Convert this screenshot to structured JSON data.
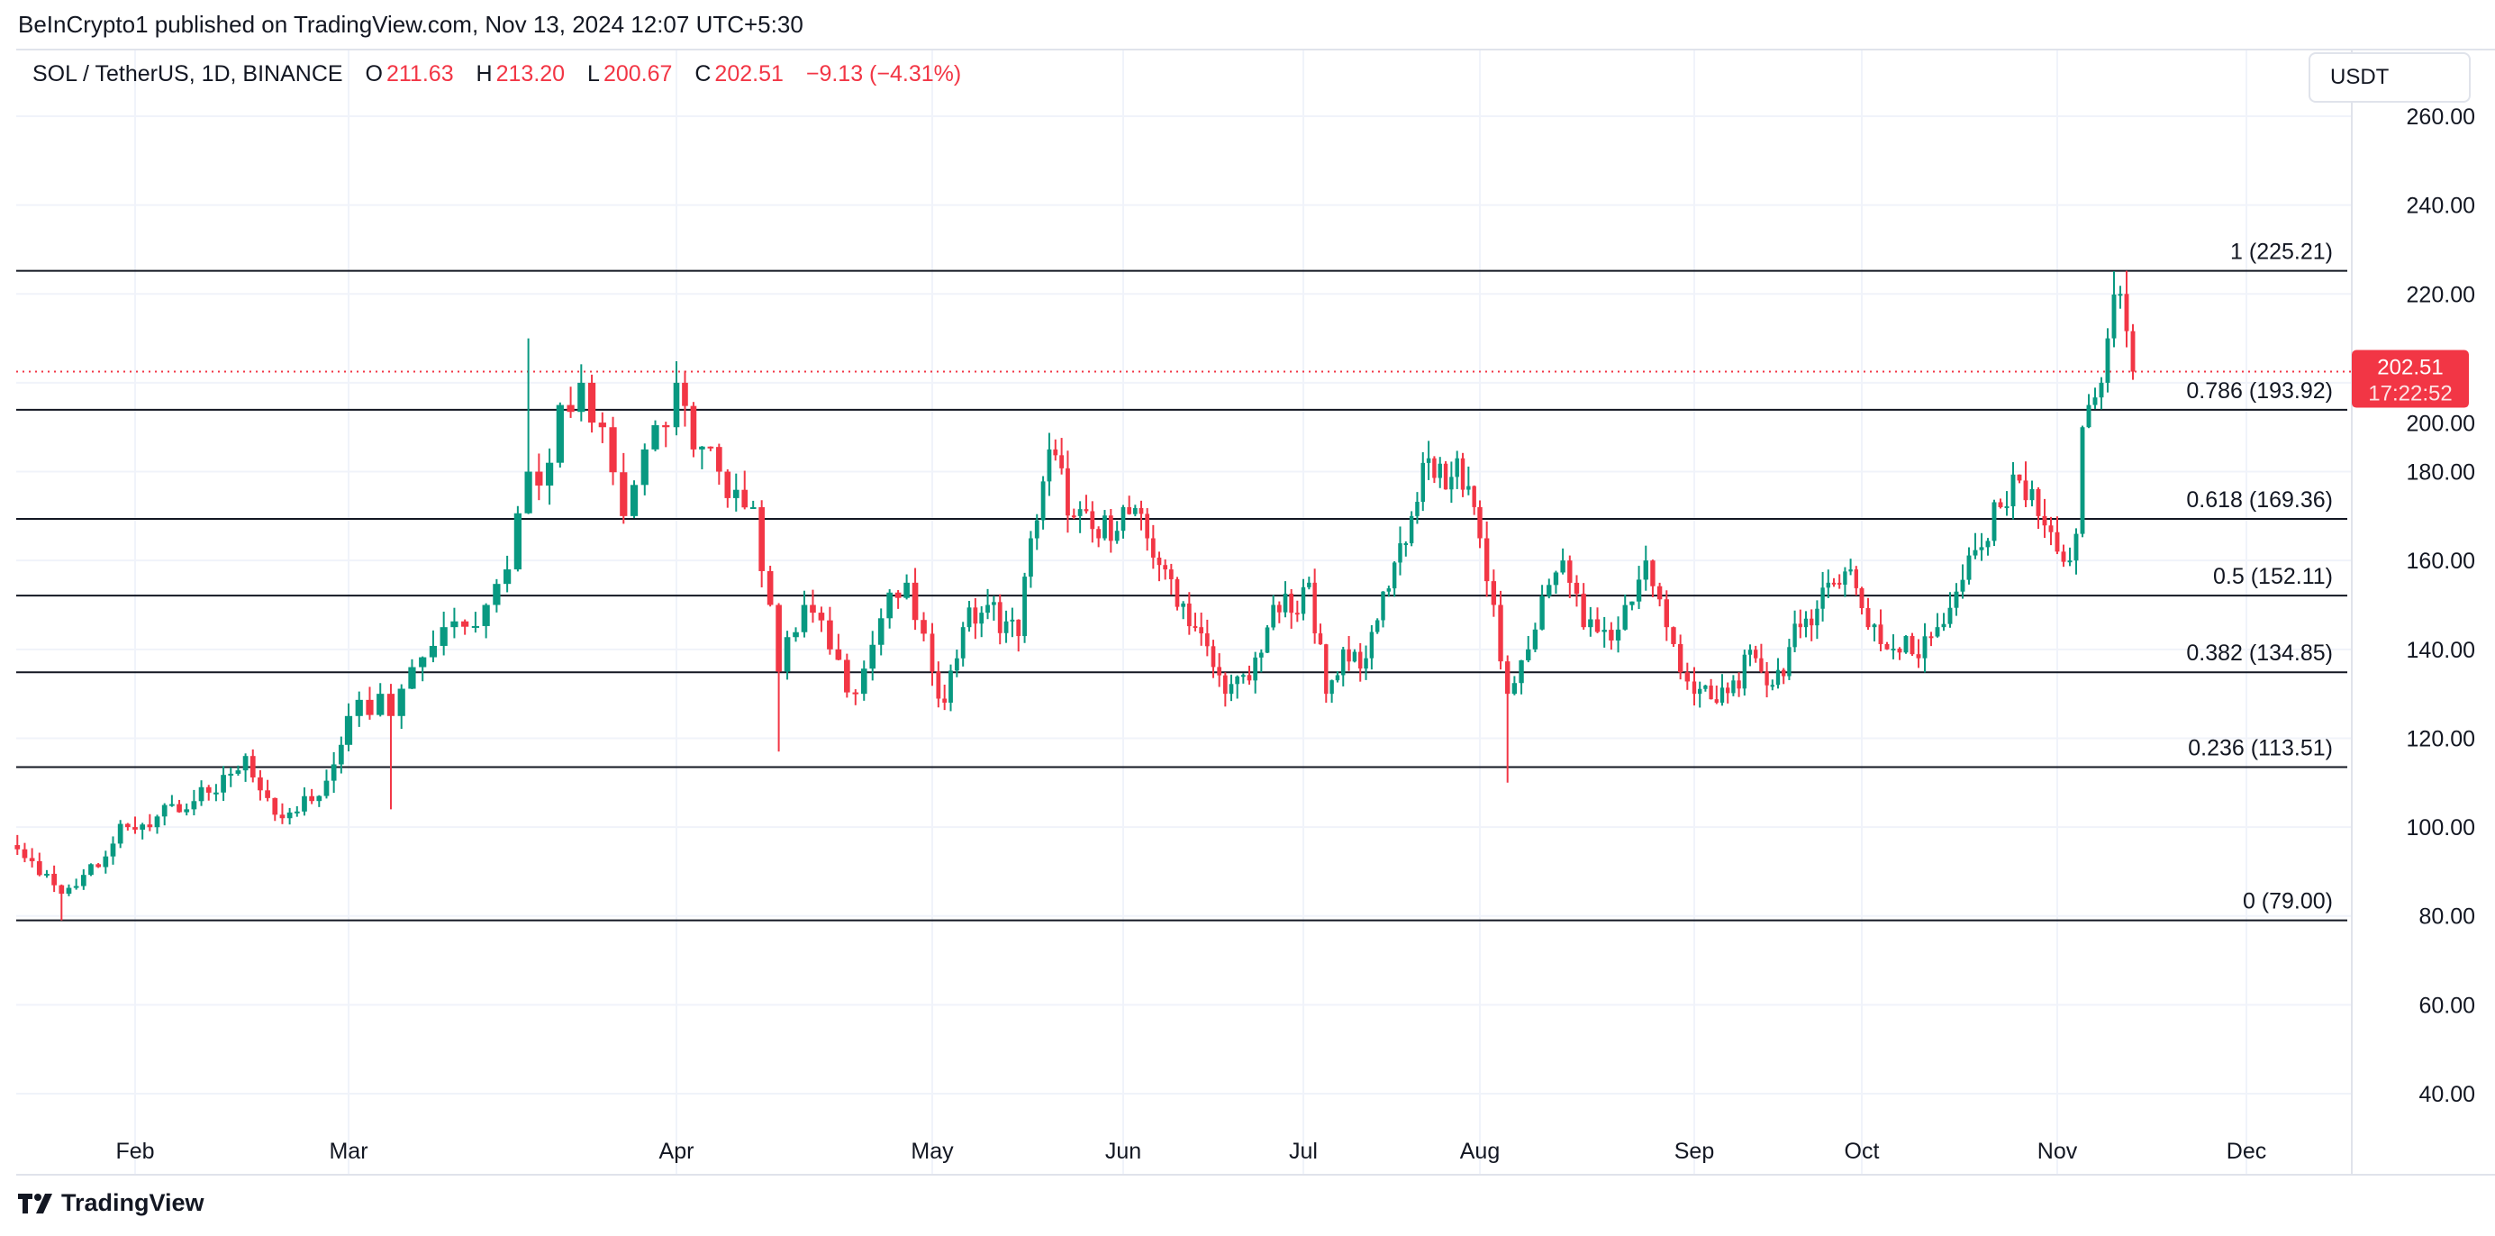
{
  "publisher": "BeInCrypto1 published on TradingView.com, Nov 13, 2024 12:07 UTC+5:30",
  "legend": {
    "symbol": "SOL / TetherUS, 1D, BINANCE",
    "o_label": "O",
    "o": "211.63",
    "h_label": "H",
    "h": "213.20",
    "l_label": "L",
    "l": "200.67",
    "c_label": "C",
    "c": "202.51",
    "change": "−9.13 (−4.31%)"
  },
  "currency_button": "USDT",
  "price_tag": {
    "price": "202.51",
    "countdown": "17:22:52"
  },
  "footer_logo": "TradingView",
  "colors": {
    "up": "#089981",
    "down": "#f23645",
    "grid": "#f0f3fa",
    "fib": "#131722"
  },
  "chart_data": {
    "type": "candlestick",
    "title": "SOL / TetherUS, 1D, BINANCE",
    "ylim": [
      30,
      270
    ],
    "y_ticks": [
      "260.00",
      "240.00",
      "220.00",
      "200.00",
      "180.00",
      "160.00",
      "140.00",
      "120.00",
      "100.00",
      "80.00",
      "60.00",
      "40.00"
    ],
    "x_ticks": [
      "Feb",
      "Mar",
      "Apr",
      "May",
      "Jun",
      "Jul",
      "Aug",
      "Sep",
      "Oct",
      "Nov",
      "Dec"
    ],
    "current_price": 202.51,
    "fib_levels": [
      {
        "label": "1 (225.21)",
        "value": 225.21
      },
      {
        "label": "0.786 (193.92)",
        "value": 193.92
      },
      {
        "label": "0.618 (169.36)",
        "value": 169.36
      },
      {
        "label": "0.5 (152.11)",
        "value": 152.11
      },
      {
        "label": "0.382 (134.85)",
        "value": 134.85
      },
      {
        "label": "0.236 (113.51)",
        "value": 113.51
      },
      {
        "label": "0 (79.00)",
        "value": 79.0
      }
    ],
    "close_keypoints": [
      [
        "01-16",
        95
      ],
      [
        "01-22",
        85
      ],
      [
        "01-31",
        100
      ],
      [
        "02-08",
        104
      ],
      [
        "02-14",
        112
      ],
      [
        "02-16",
        116
      ],
      [
        "02-21",
        102
      ],
      [
        "02-26",
        107
      ],
      [
        "03-01",
        125
      ],
      [
        "03-04",
        130
      ],
      [
        "03-05",
        125
      ],
      [
        "03-07",
        136
      ],
      [
        "03-10",
        145
      ],
      [
        "03-14",
        150
      ],
      [
        "03-16",
        158
      ],
      [
        "03-18",
        180
      ],
      [
        "03-20",
        182
      ],
      [
        "03-21",
        195
      ],
      [
        "03-23",
        200
      ],
      [
        "03-25",
        190
      ],
      [
        "03-27",
        170
      ],
      [
        "03-29",
        185
      ],
      [
        "03-31",
        190
      ],
      [
        "04-01",
        200
      ],
      [
        "04-03",
        185
      ],
      [
        "04-06",
        180
      ],
      [
        "04-10",
        172
      ],
      [
        "04-12",
        150
      ],
      [
        "04-13",
        135
      ],
      [
        "04-16",
        150
      ],
      [
        "04-19",
        140
      ],
      [
        "04-22",
        130
      ],
      [
        "04-25",
        147
      ],
      [
        "04-28",
        155
      ],
      [
        "05-01",
        135
      ],
      [
        "05-03",
        128
      ],
      [
        "05-06",
        145
      ],
      [
        "05-10",
        150
      ],
      [
        "05-15",
        143
      ],
      [
        "05-17",
        165
      ],
      [
        "05-20",
        185
      ],
      [
        "05-24",
        170
      ],
      [
        "05-28",
        165
      ],
      [
        "06-01",
        172
      ],
      [
        "06-05",
        165
      ],
      [
        "06-08",
        158
      ],
      [
        "06-13",
        145
      ],
      [
        "06-18",
        130
      ],
      [
        "06-22",
        133
      ],
      [
        "06-26",
        150
      ],
      [
        "06-30",
        148
      ],
      [
        "07-02",
        155
      ],
      [
        "07-05",
        130
      ],
      [
        "07-08",
        140
      ],
      [
        "07-12",
        138
      ],
      [
        "07-15",
        153
      ],
      [
        "07-20",
        170
      ],
      [
        "07-23",
        183
      ],
      [
        "07-26",
        176
      ],
      [
        "07-28",
        183
      ],
      [
        "08-01",
        165
      ],
      [
        "08-03",
        150
      ],
      [
        "08-05",
        130
      ],
      [
        "08-08",
        140
      ],
      [
        "08-10",
        152
      ],
      [
        "08-13",
        160
      ],
      [
        "08-16",
        145
      ],
      [
        "08-20",
        142
      ],
      [
        "08-25",
        160
      ],
      [
        "08-28",
        145
      ],
      [
        "09-01",
        130
      ],
      [
        "09-05",
        128
      ],
      [
        "09-08",
        133
      ],
      [
        "09-12",
        138
      ],
      [
        "09-15",
        132
      ],
      [
        "09-20",
        145
      ],
      [
        "09-25",
        155
      ],
      [
        "09-29",
        158
      ],
      [
        "10-02",
        145
      ],
      [
        "10-05",
        140
      ],
      [
        "10-08",
        143
      ],
      [
        "10-10",
        138
      ],
      [
        "10-13",
        145
      ],
      [
        "10-16",
        153
      ],
      [
        "10-20",
        163
      ],
      [
        "10-23",
        172
      ],
      [
        "10-26",
        178
      ],
      [
        "10-29",
        170
      ],
      [
        "11-01",
        162
      ],
      [
        "11-03",
        160
      ],
      [
        "11-04",
        166
      ],
      [
        "11-05",
        190
      ],
      [
        "11-06",
        195
      ],
      [
        "11-08",
        200
      ],
      [
        "11-09",
        210
      ],
      [
        "11-11",
        220
      ],
      [
        "11-12",
        211.63
      ],
      [
        "11-13",
        202.51
      ]
    ],
    "wick_extremes": [
      {
        "date": "01-22",
        "low": 79.0
      },
      {
        "date": "03-05",
        "low": 104.0
      },
      {
        "date": "03-18",
        "high": 210.0
      },
      {
        "date": "04-13",
        "low": 117.0
      },
      {
        "date": "08-05",
        "low": 110.0
      },
      {
        "date": "11-12",
        "high": 225.21
      },
      {
        "date": "11-13",
        "high": 213.2,
        "low": 200.67
      }
    ]
  }
}
